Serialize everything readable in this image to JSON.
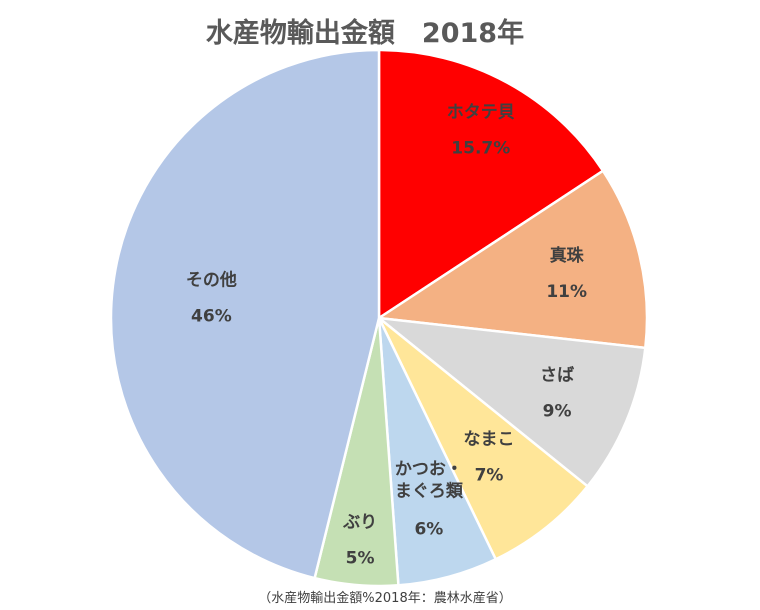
{
  "chart_data": {
    "type": "pie",
    "title": "水産物輸出金額　2018年",
    "source_note": "（水産物輸出金額%2018年：農林水産省）",
    "slices": [
      {
        "label": "ホタテ貝",
        "value": 15.7,
        "value_label": "15.7%",
        "color": "#ff0000"
      },
      {
        "label": "真珠",
        "value": 11,
        "value_label": "11%",
        "color": "#f4b183"
      },
      {
        "label": "さば",
        "value": 9,
        "value_label": "9%",
        "color": "#d9d9d9"
      },
      {
        "label": "なまこ",
        "value": 7,
        "value_label": "7%",
        "color": "#ffe699"
      },
      {
        "label": "かつお・まぐろ類",
        "label_lines": [
          "かつお・",
          "まぐろ類"
        ],
        "value": 6,
        "value_label": "6%",
        "color": "#bdd7ee"
      },
      {
        "label": "ぶり",
        "value": 5,
        "value_label": "5%",
        "color": "#c5e0b4"
      },
      {
        "label": "その他",
        "value": 46,
        "value_label": "46%",
        "color": "#b4c7e7"
      }
    ],
    "start_angle": "12 o'clock",
    "direction": "clockwise",
    "legend": "none"
  }
}
